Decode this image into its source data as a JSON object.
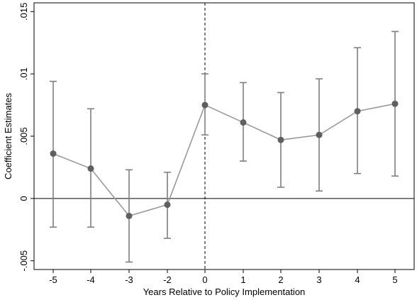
{
  "chart_data": {
    "type": "line",
    "title": "",
    "xlabel": "Years Relative to Policy Implementation",
    "ylabel": "Coefficient Estimates",
    "x_ticks": [
      "-5",
      "-4",
      "-3",
      "-2",
      "0",
      "1",
      "2",
      "3",
      "4",
      "5"
    ],
    "y_ticks": [
      {
        "value": -0.005,
        "label": "-.005"
      },
      {
        "value": 0,
        "label": "0"
      },
      {
        "value": 0.005,
        "label": ".005"
      },
      {
        "value": 0.01,
        "label": ".01"
      },
      {
        "value": 0.015,
        "label": ".015"
      }
    ],
    "ylim": [
      -0.0057,
      0.0157
    ],
    "reference_line_y": 0,
    "vertical_reference_at": "0",
    "grid": false,
    "series": [
      {
        "x": [
          "-5",
          "-4",
          "-3",
          "-2",
          "0",
          "1",
          "2",
          "3",
          "4",
          "5"
        ],
        "values": [
          0.0036,
          0.0024,
          -0.0014,
          -0.0005,
          0.0075,
          0.0061,
          0.0047,
          0.0051,
          0.007,
          0.0076
        ],
        "ci_lower": [
          -0.0023,
          -0.0023,
          -0.0051,
          -0.0032,
          0.0051,
          0.003,
          0.0009,
          0.0006,
          0.002,
          0.0018
        ],
        "ci_upper": [
          0.0094,
          0.0072,
          0.0023,
          0.0021,
          0.01,
          0.0093,
          0.0085,
          0.0096,
          0.0121,
          0.0134
        ]
      }
    ],
    "colors": {
      "line": "#999999",
      "marker": "#5f5f5f",
      "error_bar": "#7f7f7f",
      "axis": "#000000"
    }
  }
}
